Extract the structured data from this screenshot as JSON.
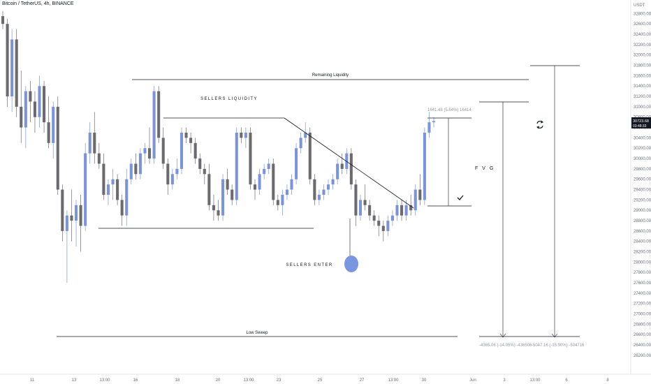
{
  "header": {
    "symbol": "Bitcoin / TetherUS, 4h, BINANCE",
    "currency": "USDT"
  },
  "price_tag": {
    "price": "30723.68",
    "countdown": "03:48:33"
  },
  "annotations": {
    "remaining_liquidity": "Remaining Liquidity",
    "sellers_liquidity": "SELLERS LIQUIDITY",
    "sellers_enter": "SELLERS ENTER",
    "fvg": "F V G",
    "low_sweep": "Low Sweep",
    "measure_top": "1641.48 (5.64%) 16414",
    "measure_bottom_left": "-4365.06 (-14.05%) -436506",
    "measure_bottom_right": "-5047.16 (-15.90%) -504716"
  },
  "colors": {
    "up": "#7b93db",
    "down": "#6b6b6f",
    "line": "#131722",
    "circle": "#7b96e0",
    "tag_bg": "#131722"
  },
  "chart_data": {
    "type": "candlestick",
    "title": "Bitcoin / TetherUS, 4h, BINANCE",
    "ylabel": "USDT",
    "ylim": [
      26050,
      32900
    ],
    "y_ticks": [
      26200,
      26400,
      26600,
      26800,
      27000,
      27200,
      27400,
      27600,
      27800,
      28000,
      28200,
      28400,
      28600,
      28800,
      29000,
      29200,
      29400,
      29600,
      29800,
      30000,
      30200,
      30400,
      30600,
      30800,
      31000,
      31200,
      31400,
      31600,
      31800,
      32000,
      32200,
      32400,
      32600,
      32800
    ],
    "x_ticks": [
      "11",
      "13",
      "13:00",
      "16",
      "18",
      "20",
      "13:00",
      "23",
      "25",
      "27",
      "13:00",
      "30",
      "Jun",
      "3",
      "13:00",
      "6",
      "8"
    ],
    "candles": [
      [
        32750,
        32850,
        32500,
        32600
      ],
      [
        32600,
        32700,
        31000,
        31200
      ],
      [
        31200,
        32500,
        30900,
        32300
      ],
      [
        32300,
        32500,
        30800,
        31000
      ],
      [
        31000,
        31700,
        30300,
        30600
      ],
      [
        30600,
        31400,
        30200,
        31300
      ],
      [
        31300,
        31500,
        30700,
        31100
      ],
      [
        31100,
        31300,
        30500,
        30800
      ],
      [
        30800,
        31600,
        30600,
        31400
      ],
      [
        31400,
        31500,
        30500,
        30700
      ],
      [
        30700,
        31200,
        30200,
        30300
      ],
      [
        30300,
        31100,
        30000,
        31000
      ],
      [
        31000,
        31200,
        29300,
        29400
      ],
      [
        29400,
        29500,
        28400,
        28600
      ],
      [
        28600,
        29000,
        27600,
        28900
      ],
      [
        28900,
        29400,
        28400,
        28800
      ],
      [
        28800,
        29200,
        28300,
        29100
      ],
      [
        29100,
        29300,
        28200,
        28700
      ],
      [
        28700,
        30300,
        28600,
        30100
      ],
      [
        30100,
        30700,
        29900,
        30500
      ],
      [
        30500,
        30900,
        29900,
        30100
      ],
      [
        30100,
        30300,
        29800,
        29900
      ],
      [
        29900,
        30100,
        29200,
        29300
      ],
      [
        29300,
        29600,
        29100,
        29500
      ],
      [
        29500,
        29800,
        29200,
        29600
      ],
      [
        29600,
        29700,
        29100,
        29200
      ],
      [
        29200,
        29300,
        28700,
        28900
      ],
      [
        28900,
        29800,
        28700,
        29600
      ],
      [
        29600,
        30000,
        29500,
        29900
      ],
      [
        29900,
        30100,
        29600,
        29700
      ],
      [
        29700,
        30200,
        29600,
        30100
      ],
      [
        30100,
        30300,
        29900,
        30200
      ],
      [
        30200,
        30600,
        29900,
        30000
      ],
      [
        30000,
        31400,
        29900,
        31300
      ],
      [
        31300,
        31400,
        30300,
        30400
      ],
      [
        30400,
        30600,
        29800,
        29900
      ],
      [
        29900,
        30000,
        29300,
        29500
      ],
      [
        29500,
        29800,
        29400,
        29700
      ],
      [
        29700,
        30000,
        29600,
        29800
      ],
      [
        29800,
        30600,
        29700,
        30500
      ],
      [
        30500,
        30600,
        30300,
        30400
      ],
      [
        30400,
        30500,
        30100,
        30300
      ],
      [
        30300,
        30400,
        29900,
        30000
      ],
      [
        30000,
        30100,
        29700,
        29800
      ],
      [
        29800,
        29900,
        29500,
        29700
      ],
      [
        29700,
        29900,
        29000,
        29100
      ],
      [
        29100,
        29300,
        28800,
        29000
      ],
      [
        29000,
        29200,
        28800,
        28900
      ],
      [
        28900,
        29700,
        28800,
        29600
      ],
      [
        29600,
        29800,
        29300,
        29400
      ],
      [
        29400,
        29500,
        29100,
        29200
      ],
      [
        29200,
        30600,
        29100,
        30500
      ],
      [
        30500,
        30600,
        30300,
        30400
      ],
      [
        30400,
        30600,
        30200,
        30500
      ],
      [
        30500,
        30600,
        29400,
        29500
      ],
      [
        29500,
        29600,
        29200,
        29400
      ],
      [
        29400,
        29800,
        29300,
        29700
      ],
      [
        29700,
        29900,
        29600,
        29800
      ],
      [
        29800,
        30000,
        29700,
        29900
      ],
      [
        29900,
        30000,
        29100,
        29200
      ],
      [
        29200,
        29300,
        29000,
        29100
      ],
      [
        29100,
        29400,
        28900,
        29300
      ],
      [
        29300,
        29500,
        29200,
        29400
      ],
      [
        29400,
        29700,
        29300,
        29600
      ],
      [
        29600,
        30300,
        29500,
        30200
      ],
      [
        30200,
        30500,
        30100,
        30400
      ],
      [
        30400,
        30700,
        30300,
        30500
      ],
      [
        30500,
        30600,
        29500,
        29600
      ],
      [
        29600,
        29700,
        29100,
        29200
      ],
      [
        29200,
        29400,
        29100,
        29300
      ],
      [
        29300,
        29500,
        29200,
        29400
      ],
      [
        29400,
        29600,
        29300,
        29500
      ],
      [
        29500,
        29700,
        29400,
        29600
      ],
      [
        29600,
        30000,
        29500,
        29900
      ],
      [
        29900,
        30100,
        29700,
        29800
      ],
      [
        29800,
        30200,
        29700,
        30100
      ],
      [
        30100,
        30200,
        29400,
        29500
      ],
      [
        29500,
        29600,
        28700,
        28900
      ],
      [
        28900,
        29300,
        28800,
        29200
      ],
      [
        29200,
        29500,
        29000,
        29100
      ],
      [
        29100,
        29200,
        28800,
        28900
      ],
      [
        28900,
        29000,
        28700,
        28800
      ],
      [
        28800,
        28900,
        28500,
        28700
      ],
      [
        28700,
        28800,
        28400,
        28600
      ],
      [
        28600,
        28900,
        28500,
        28800
      ],
      [
        28800,
        29000,
        28700,
        28900
      ],
      [
        28900,
        29200,
        28800,
        29100
      ],
      [
        29100,
        29200,
        28800,
        28900
      ],
      [
        28900,
        29200,
        28800,
        29100
      ],
      [
        29100,
        29300,
        28900,
        29000
      ],
      [
        29000,
        29500,
        28900,
        29400
      ],
      [
        29400,
        29700,
        29100,
        29200
      ],
      [
        29200,
        30600,
        29100,
        30500
      ],
      [
        30500,
        30900,
        30400,
        30700
      ],
      [
        30700,
        30800,
        30600,
        30723.68
      ]
    ]
  }
}
